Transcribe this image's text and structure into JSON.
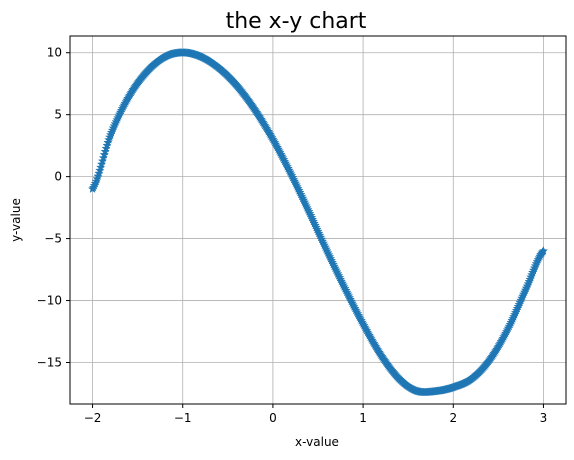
{
  "chart_data": {
    "type": "scatter",
    "title": "the x-y chart",
    "xlabel": "x-value",
    "ylabel": "y-value",
    "xlim": [
      -2.25,
      3.25
    ],
    "ylim": [
      -18.35,
      11.35
    ],
    "xticks": [
      -2,
      -1,
      0,
      1,
      2,
      3
    ],
    "xtick_labels": [
      "−2",
      "−1",
      "0",
      "1",
      "2",
      "3"
    ],
    "yticks": [
      -15,
      -10,
      -5,
      0,
      5,
      10
    ],
    "ytick_labels": [
      "−15",
      "−10",
      "−5",
      "0",
      "5",
      "10"
    ],
    "grid": true,
    "marker": "star",
    "series": [
      {
        "color": "#1f77b4",
        "x": [
          -2.0,
          -1.8,
          -1.6,
          -1.4,
          -1.2,
          -1.0,
          -0.8,
          -0.6,
          -0.4,
          -0.2,
          0.0,
          0.2,
          0.4,
          0.6,
          0.8,
          1.0,
          1.2,
          1.4,
          1.6,
          1.8,
          2.0,
          2.2,
          2.4,
          2.6,
          2.8,
          3.0
        ],
        "y": [
          -1.0,
          3.37,
          6.42,
          8.46,
          9.67,
          10.0,
          9.69,
          8.78,
          7.34,
          5.39,
          3.0,
          0.21,
          -2.84,
          -6.01,
          -9.05,
          -11.9,
          -14.43,
          -16.31,
          -17.31,
          -17.33,
          -17.0,
          -16.32,
          -14.82,
          -12.38,
          -9.17,
          -6.0
        ]
      }
    ]
  }
}
